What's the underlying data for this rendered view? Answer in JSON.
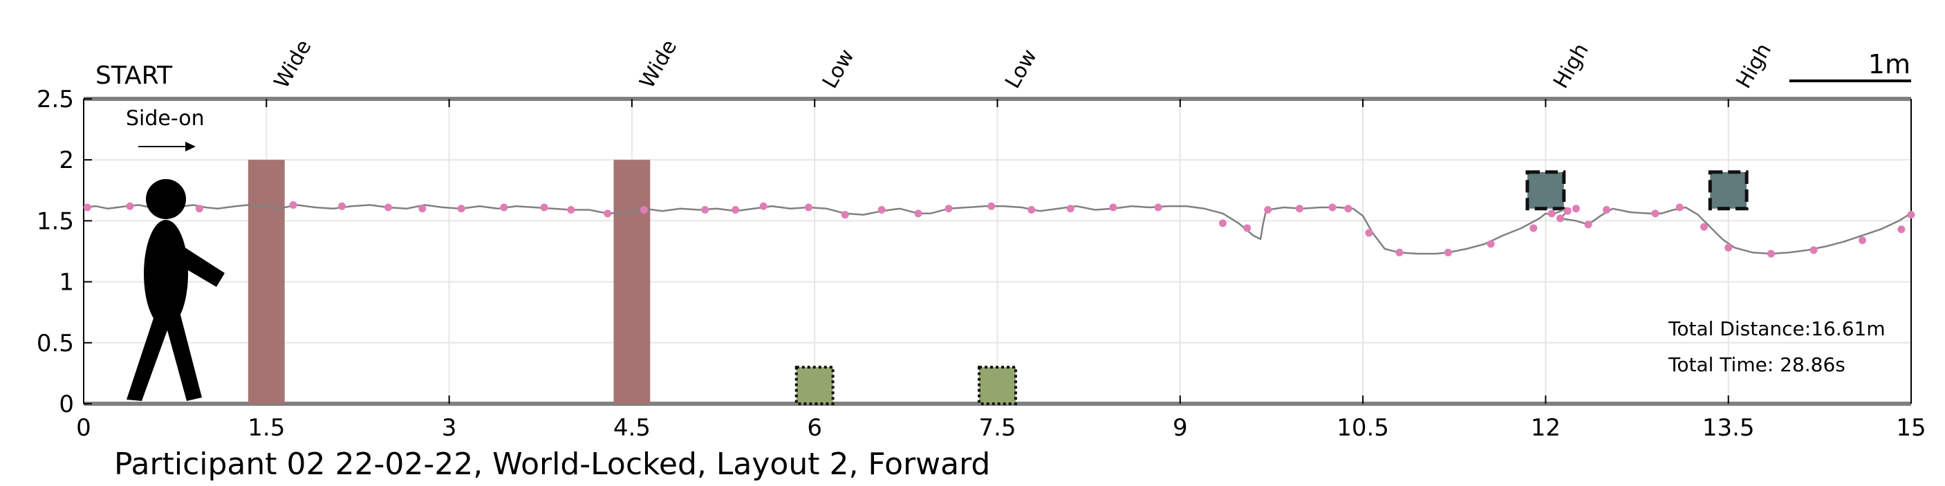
{
  "chart_data": {
    "type": "line",
    "title": "Participant 02 22-02-22, World-Locked, Layout 2, Forward",
    "xlim": [
      0,
      15
    ],
    "ylim": [
      0,
      2.5
    ],
    "x_ticks": [
      "0",
      "1.5",
      "3",
      "4.5",
      "6",
      "7.5",
      "9",
      "10.5",
      "12",
      "13.5",
      "15"
    ],
    "y_ticks": [
      "0",
      "0.5",
      "1",
      "1.5",
      "2",
      "2.5"
    ],
    "grid": true,
    "start_label": "START",
    "direction_label": "Side-on",
    "scale_bar_label": "1m",
    "scale_bar_length": 1,
    "obstacle_labels": [
      {
        "label": "Wide",
        "x": 1.5
      },
      {
        "label": "Wide",
        "x": 4.5
      },
      {
        "label": "Low",
        "x": 6.0
      },
      {
        "label": "Low",
        "x": 7.5
      },
      {
        "label": "High",
        "x": 12.0
      },
      {
        "label": "High",
        "x": 13.5
      }
    ],
    "obstacles": [
      {
        "type": "Wide",
        "x_start": 1.35,
        "x_end": 1.65,
        "y_start": 0,
        "y_end": 2.0,
        "color": "#a67373"
      },
      {
        "type": "Wide",
        "x_start": 4.35,
        "x_end": 4.65,
        "y_start": 0,
        "y_end": 2.0,
        "color": "#a67373"
      },
      {
        "type": "Low",
        "x_start": 5.85,
        "x_end": 6.15,
        "y_start": 0,
        "y_end": 0.3,
        "color": "#93a66d"
      },
      {
        "type": "Low",
        "x_start": 7.35,
        "x_end": 7.65,
        "y_start": 0,
        "y_end": 0.3,
        "color": "#93a66d"
      },
      {
        "type": "High",
        "x_start": 11.85,
        "x_end": 12.15,
        "y_start": 1.6,
        "y_end": 1.9,
        "color": "#5f7b7b"
      },
      {
        "type": "High",
        "x_start": 13.35,
        "x_end": 13.65,
        "y_start": 1.6,
        "y_end": 1.9,
        "color": "#5f7b7b"
      }
    ],
    "path_color": "#808080",
    "marker_color": "#e07db5",
    "path": [
      [
        0.0,
        1.61
      ],
      [
        0.1,
        1.62
      ],
      [
        0.2,
        1.6
      ],
      [
        0.35,
        1.62
      ],
      [
        0.45,
        1.63
      ],
      [
        0.6,
        1.6
      ],
      [
        0.75,
        1.61
      ],
      [
        0.9,
        1.63
      ],
      [
        1.0,
        1.61
      ],
      [
        1.1,
        1.6
      ],
      [
        1.25,
        1.62
      ],
      [
        1.35,
        1.63
      ],
      [
        1.5,
        1.62
      ],
      [
        1.6,
        1.6
      ],
      [
        1.75,
        1.63
      ],
      [
        1.9,
        1.61
      ],
      [
        2.05,
        1.6
      ],
      [
        2.2,
        1.62
      ],
      [
        2.35,
        1.63
      ],
      [
        2.5,
        1.61
      ],
      [
        2.65,
        1.6
      ],
      [
        2.8,
        1.63
      ],
      [
        2.95,
        1.61
      ],
      [
        3.1,
        1.6
      ],
      [
        3.25,
        1.62
      ],
      [
        3.4,
        1.6
      ],
      [
        3.55,
        1.62
      ],
      [
        3.7,
        1.61
      ],
      [
        3.85,
        1.6
      ],
      [
        4.0,
        1.59
      ],
      [
        4.15,
        1.59
      ],
      [
        4.3,
        1.56
      ],
      [
        4.45,
        1.57
      ],
      [
        4.6,
        1.6
      ],
      [
        4.75,
        1.58
      ],
      [
        4.9,
        1.6
      ],
      [
        5.05,
        1.59
      ],
      [
        5.2,
        1.6
      ],
      [
        5.35,
        1.58
      ],
      [
        5.5,
        1.6
      ],
      [
        5.65,
        1.62
      ],
      [
        5.8,
        1.6
      ],
      [
        5.95,
        1.61
      ],
      [
        6.1,
        1.6
      ],
      [
        6.25,
        1.56
      ],
      [
        6.4,
        1.55
      ],
      [
        6.55,
        1.58
      ],
      [
        6.7,
        1.6
      ],
      [
        6.85,
        1.56
      ],
      [
        6.95,
        1.56
      ],
      [
        7.1,
        1.6
      ],
      [
        7.25,
        1.61
      ],
      [
        7.4,
        1.62
      ],
      [
        7.55,
        1.62
      ],
      [
        7.7,
        1.61
      ],
      [
        7.85,
        1.58
      ],
      [
        8.0,
        1.6
      ],
      [
        8.15,
        1.62
      ],
      [
        8.3,
        1.59
      ],
      [
        8.45,
        1.6
      ],
      [
        8.6,
        1.62
      ],
      [
        8.75,
        1.61
      ],
      [
        8.9,
        1.62
      ],
      [
        9.05,
        1.62
      ],
      [
        9.2,
        1.6
      ],
      [
        9.35,
        1.56
      ],
      [
        9.48,
        1.48
      ],
      [
        9.6,
        1.38
      ],
      [
        9.66,
        1.35
      ],
      [
        9.68,
        1.47
      ],
      [
        9.7,
        1.56
      ],
      [
        9.72,
        1.59
      ],
      [
        9.85,
        1.61
      ],
      [
        10.0,
        1.6
      ],
      [
        10.15,
        1.61
      ],
      [
        10.3,
        1.61
      ],
      [
        10.42,
        1.6
      ],
      [
        10.5,
        1.54
      ],
      [
        10.58,
        1.4
      ],
      [
        10.68,
        1.27
      ],
      [
        10.8,
        1.24
      ],
      [
        10.95,
        1.23
      ],
      [
        11.1,
        1.23
      ],
      [
        11.2,
        1.24
      ],
      [
        11.35,
        1.27
      ],
      [
        11.5,
        1.31
      ],
      [
        11.65,
        1.38
      ],
      [
        11.8,
        1.44
      ],
      [
        11.95,
        1.52
      ],
      [
        12.0,
        1.56
      ],
      [
        12.05,
        1.55
      ],
      [
        12.1,
        1.57
      ],
      [
        12.15,
        1.59
      ],
      [
        12.2,
        1.6
      ],
      [
        12.12,
        1.52
      ],
      [
        12.25,
        1.5
      ],
      [
        12.35,
        1.47
      ],
      [
        12.45,
        1.54
      ],
      [
        12.55,
        1.6
      ],
      [
        12.7,
        1.57
      ],
      [
        12.85,
        1.56
      ],
      [
        12.95,
        1.56
      ],
      [
        13.05,
        1.59
      ],
      [
        13.15,
        1.61
      ],
      [
        13.25,
        1.55
      ],
      [
        13.35,
        1.45
      ],
      [
        13.45,
        1.35
      ],
      [
        13.55,
        1.28
      ],
      [
        13.7,
        1.24
      ],
      [
        13.85,
        1.23
      ],
      [
        14.0,
        1.24
      ],
      [
        14.15,
        1.26
      ],
      [
        14.3,
        1.29
      ],
      [
        14.45,
        1.33
      ],
      [
        14.6,
        1.38
      ],
      [
        14.75,
        1.43
      ],
      [
        14.9,
        1.5
      ],
      [
        14.98,
        1.55
      ]
    ],
    "markers": [
      [
        0.03,
        1.61
      ],
      [
        0.38,
        1.62
      ],
      [
        0.95,
        1.6
      ],
      [
        1.72,
        1.63
      ],
      [
        2.12,
        1.62
      ],
      [
        2.5,
        1.61
      ],
      [
        2.78,
        1.6
      ],
      [
        3.1,
        1.6
      ],
      [
        3.45,
        1.61
      ],
      [
        3.78,
        1.61
      ],
      [
        4.0,
        1.59
      ],
      [
        4.3,
        1.56
      ],
      [
        4.6,
        1.59
      ],
      [
        5.1,
        1.59
      ],
      [
        5.35,
        1.59
      ],
      [
        5.58,
        1.62
      ],
      [
        5.95,
        1.61
      ],
      [
        6.25,
        1.55
      ],
      [
        6.55,
        1.59
      ],
      [
        6.85,
        1.56
      ],
      [
        7.1,
        1.6
      ],
      [
        7.45,
        1.62
      ],
      [
        7.78,
        1.59
      ],
      [
        8.1,
        1.6
      ],
      [
        8.45,
        1.61
      ],
      [
        8.82,
        1.61
      ],
      [
        9.35,
        1.48
      ],
      [
        9.55,
        1.44
      ],
      [
        9.72,
        1.59
      ],
      [
        9.98,
        1.6
      ],
      [
        10.25,
        1.61
      ],
      [
        10.38,
        1.6
      ],
      [
        10.55,
        1.4
      ],
      [
        10.8,
        1.24
      ],
      [
        11.2,
        1.24
      ],
      [
        11.55,
        1.31
      ],
      [
        11.9,
        1.44
      ],
      [
        12.05,
        1.56
      ],
      [
        12.12,
        1.52
      ],
      [
        12.18,
        1.58
      ],
      [
        12.25,
        1.6
      ],
      [
        12.35,
        1.47
      ],
      [
        12.5,
        1.59
      ],
      [
        12.9,
        1.56
      ],
      [
        13.1,
        1.61
      ],
      [
        13.3,
        1.45
      ],
      [
        13.5,
        1.28
      ],
      [
        13.85,
        1.23
      ],
      [
        14.2,
        1.26
      ],
      [
        14.6,
        1.34
      ],
      [
        14.92,
        1.43
      ],
      [
        15.0,
        1.55
      ]
    ]
  },
  "info": {
    "total_distance": "Total Distance:16.61m",
    "total_time": "Total Time: 28.86s"
  }
}
